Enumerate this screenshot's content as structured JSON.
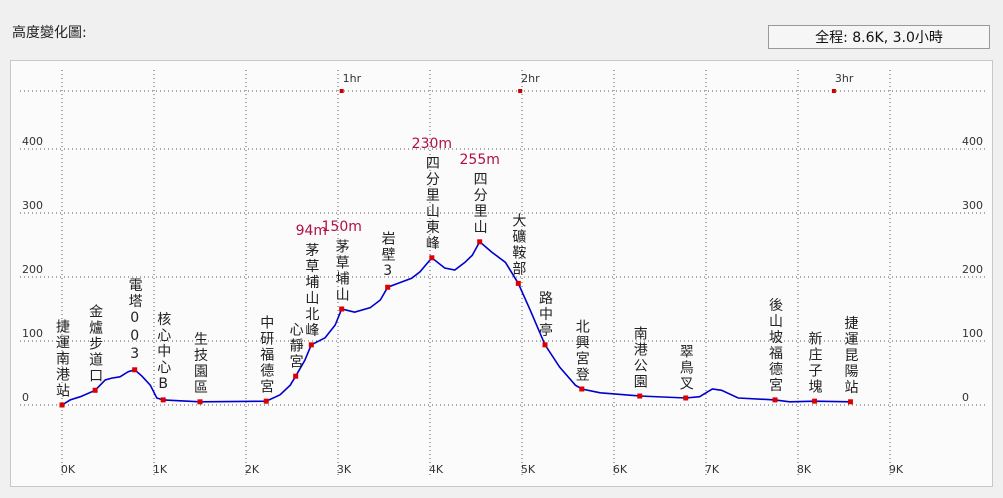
{
  "header": {
    "title": "高度變化圖:",
    "summary": "全程: 8.6K, 3.0小時"
  },
  "chart_data": {
    "type": "line",
    "xlim": [
      0,
      9
    ],
    "ylim": [
      0,
      400
    ],
    "xticks": [
      {
        "value": 0,
        "label": "0K"
      },
      {
        "value": 1,
        "label": "1K"
      },
      {
        "value": 2,
        "label": "2K"
      },
      {
        "value": 3,
        "label": "3K"
      },
      {
        "value": 4,
        "label": "4K"
      },
      {
        "value": 5,
        "label": "5K"
      },
      {
        "value": 6,
        "label": "6K"
      },
      {
        "value": 7,
        "label": "7K"
      },
      {
        "value": 8,
        "label": "8K"
      },
      {
        "value": 9,
        "label": "9K"
      }
    ],
    "yticks": [
      0,
      100,
      200,
      300,
      400
    ],
    "grid": true,
    "time_marks": [
      {
        "label": "1hr",
        "x": 3.04
      },
      {
        "label": "2hr",
        "x": 4.98
      },
      {
        "label": "3hr",
        "x": 8.39
      }
    ],
    "time_mark_color": "#cc0000",
    "series": [
      {
        "color": "#0000cc",
        "x": [
          0,
          0.09,
          0.2,
          0.36,
          0.47,
          0.54,
          0.63,
          0.72,
          0.79,
          0.87,
          0.96,
          1.03,
          1.1,
          1.5,
          2.22,
          2.37,
          2.48,
          2.54,
          2.64,
          2.71,
          2.86,
          2.97,
          3.04,
          3.18,
          3.35,
          3.46,
          3.54,
          3.67,
          3.8,
          3.89,
          4.02,
          4.16,
          4.27,
          4.38,
          4.46,
          4.54,
          4.67,
          4.82,
          4.96,
          5.09,
          5.25,
          5.41,
          5.58,
          5.65,
          5.85,
          6.28,
          6.78,
          6.93,
          7.07,
          7.17,
          7.35,
          7.75,
          7.91,
          8.18,
          8.57
        ],
        "values": [
          0,
          8,
          13,
          23,
          39,
          42,
          44,
          52,
          55,
          45,
          31,
          11,
          8,
          5,
          6,
          16,
          31,
          45,
          70,
          94,
          105,
          125,
          150,
          145,
          152,
          164,
          184,
          191,
          198,
          208,
          230,
          214,
          211,
          223,
          234,
          255,
          239,
          223,
          190,
          148,
          94,
          59,
          31,
          25,
          19,
          14,
          11,
          13,
          25,
          23,
          11,
          8,
          5,
          6,
          5
        ]
      }
    ],
    "waypoint_color": "#dd0000",
    "waypoints": [
      {
        "name": "捷運南港站",
        "km": 0,
        "elevation": 0
      },
      {
        "name": "金爐步道口",
        "km": 0.36,
        "elevation": 23
      },
      {
        "name": "電塔003",
        "km": 0.79,
        "elevation": 55
      },
      {
        "name": "核心中心B",
        "km": 1.1,
        "elevation": 8
      },
      {
        "name": "生技園區",
        "km": 1.5,
        "elevation": 5
      },
      {
        "name": "中研福德宮",
        "km": 2.22,
        "elevation": 6
      },
      {
        "name": "心靜宮",
        "km": 2.54,
        "elevation": 45
      },
      {
        "name": "茅草埔山北峰",
        "km": 2.71,
        "elevation": 94,
        "value_label": "94m"
      },
      {
        "name": "茅草埔山",
        "km": 3.04,
        "elevation": 150,
        "value_label": "150m"
      },
      {
        "name": "岩壁3",
        "km": 3.54,
        "elevation": 184
      },
      {
        "name": "四分里山東峰",
        "km": 4.02,
        "elevation": 230,
        "value_label": "230m"
      },
      {
        "name": "四分里山",
        "km": 4.54,
        "elevation": 255,
        "value_label": "255m"
      },
      {
        "name": "大礦鞍部",
        "km": 4.96,
        "elevation": 190
      },
      {
        "name": "路中亭",
        "km": 5.25,
        "elevation": 94
      },
      {
        "name": "北興宮登",
        "km": 5.65,
        "elevation": 25
      },
      {
        "name": "南港公園",
        "km": 6.28,
        "elevation": 14
      },
      {
        "name": "翠鳥叉",
        "km": 6.78,
        "elevation": 11
      },
      {
        "name": "後山坡福德宮",
        "km": 7.75,
        "elevation": 8
      },
      {
        "name": "新庄子塊",
        "km": 8.18,
        "elevation": 6
      },
      {
        "name": "捷運昆陽站",
        "km": 8.57,
        "elevation": 5
      }
    ]
  }
}
